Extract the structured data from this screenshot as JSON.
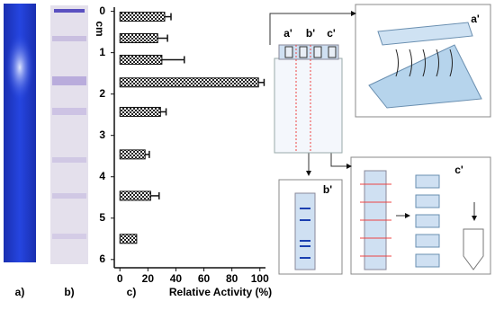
{
  "panel_labels": [
    "a)",
    "b)"
  ],
  "chart_data": {
    "type": "bar",
    "orientation": "horizontal",
    "panel_label": "c)",
    "x_label": "Relative Activity (%)",
    "y_label": "cm",
    "positions": [
      0.13,
      0.65,
      1.17,
      1.72,
      2.43,
      3.46,
      4.46,
      5.5
    ],
    "values": [
      32,
      27,
      30,
      99,
      29,
      18,
      22,
      12
    ],
    "errors": [
      4.5,
      7,
      16,
      4,
      4,
      3,
      6,
      0
    ],
    "xlim": [
      -4,
      104
    ],
    "xticks": [
      0,
      20,
      40,
      60,
      80,
      100
    ],
    "ylim": [
      -0.1,
      6.2
    ],
    "yticks": [
      0,
      1,
      2,
      3,
      4,
      5,
      6
    ],
    "y_inverted": true
  },
  "diagram": {
    "plate_labels": [
      "a'",
      "b'",
      "c'"
    ],
    "inset_labels": [
      "a'",
      "b'",
      "c'"
    ]
  }
}
